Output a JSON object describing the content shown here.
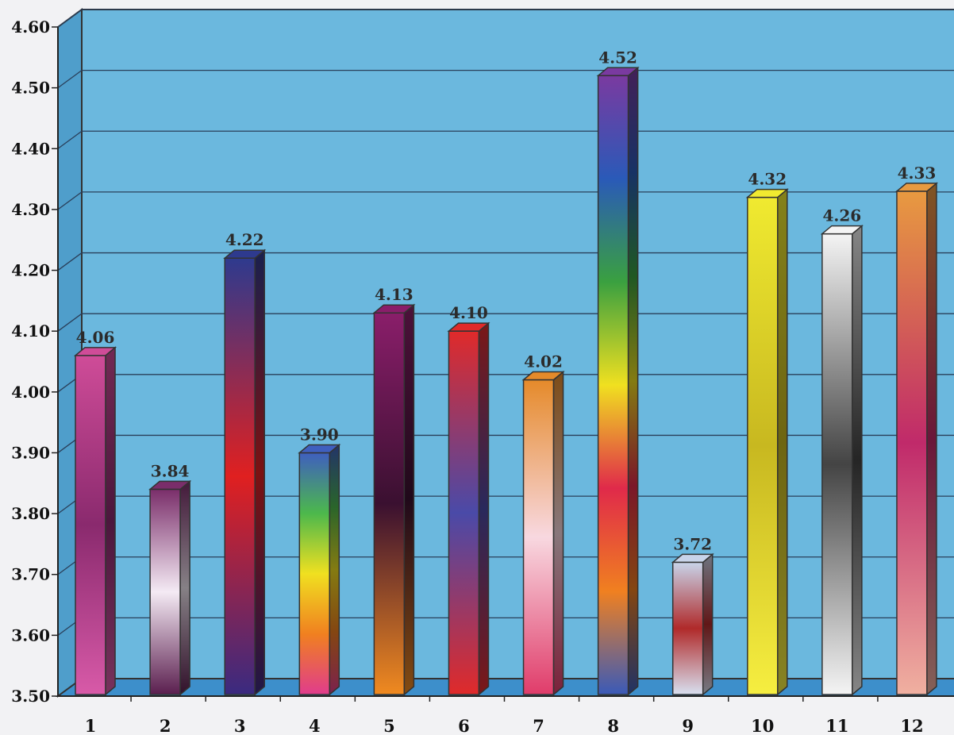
{
  "chart_data": {
    "type": "bar",
    "categories": [
      "1",
      "2",
      "3",
      "4",
      "5",
      "6",
      "7",
      "8",
      "9",
      "10",
      "11",
      "12"
    ],
    "values": [
      4.06,
      3.84,
      4.22,
      3.9,
      4.13,
      4.1,
      4.02,
      4.52,
      3.72,
      4.32,
      4.26,
      4.33
    ],
    "data_labels": [
      "4.06",
      "3.84",
      "4.22",
      "3.90",
      "4.13",
      "4.10",
      "4.02",
      "4.52",
      "3.72",
      "4.32",
      "4.26",
      "4.33"
    ],
    "title": "",
    "xlabel": "",
    "ylabel": "",
    "ylim": [
      3.5,
      4.6
    ],
    "y_ticks": [
      3.5,
      3.6,
      3.7,
      3.8,
      3.9,
      4.0,
      4.1,
      4.2,
      4.3,
      4.4,
      4.5,
      4.6
    ],
    "y_tick_labels": [
      "3.50",
      "3.60",
      "3.70",
      "3.80",
      "3.90",
      "4.00",
      "4.10",
      "4.20",
      "4.30",
      "4.40",
      "4.50",
      "4.60"
    ],
    "grid": true,
    "legend": "none",
    "style": "3d",
    "background_color": "#6bb8de",
    "bar_colors": [
      [
        "#cf4c98",
        "#8a2a6e",
        "#d85aa8"
      ],
      [
        "#7a2e6a",
        "#f4eaf4",
        "#5a1e4e"
      ],
      [
        "#2e3a8e",
        "#e02020",
        "#3a2a80"
      ],
      [
        "#3f5fbf",
        "#4cb84c",
        "#f0e020",
        "#f08020",
        "#e03c8c"
      ],
      [
        "#8a1e6a",
        "#3a1030",
        "#f08a20"
      ],
      [
        "#e02a2a",
        "#4a4aa8",
        "#e02a2a"
      ],
      [
        "#e58a2a",
        "#f8d8e0",
        "#e03c6a"
      ],
      [
        "#7a3aa0",
        "#2a5ab8",
        "#3aa040",
        "#f0e020",
        "#e02a4a",
        "#f08020",
        "#3a5ab8"
      ],
      [
        "#c8d4ea",
        "#b02a2a",
        "#d8e0f0"
      ],
      [
        "#f0ea30",
        "#c8b820",
        "#f6ee40"
      ],
      [
        "#f4f4f4",
        "#444444",
        "#f4f4f4"
      ],
      [
        "#e89a40",
        "#c02a6a",
        "#f0b0a0"
      ]
    ]
  }
}
